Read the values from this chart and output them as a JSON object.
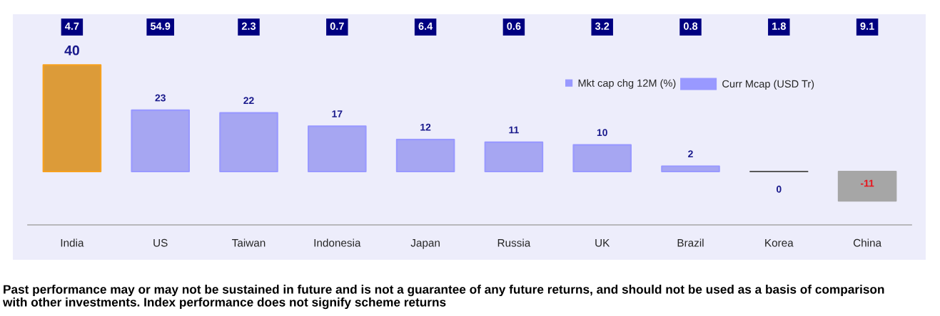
{
  "chart_data": [
    {
      "type": "other",
      "categories": [
        null,
        null,
        null,
        null,
        null,
        null,
        null,
        null,
        null,
        null
      ],
      "series": [
        {
          "name": "Curr Mcap (USD Tr)",
          "color": "#9999ff",
          "values": [
            4.7,
            54.9,
            2.3,
            0.7,
            6.4,
            0.6,
            3.2,
            0.8,
            1.8,
            9.1
          ]
        }
      ],
      "data_labels": true,
      "legend": "bottom right"
    },
    {
      "type": "bar",
      "categories": [
        "India",
        "US",
        "Taiwan",
        "Indonesia",
        "Japan",
        "Russia",
        "UK",
        "Brazil",
        "Korea",
        "China"
      ],
      "series": [
        {
          "name": "Mkt cap chg 12M (%)",
          "color": "#9999ff",
          "colors": [
            "#f7a11e",
            "#9999ff",
            "#9999ff",
            "#9999ff",
            "#9999ff",
            "#9999ff",
            "#9999ff",
            "#9999ff",
            "#595959",
            "#a6a6a6"
          ],
          "values": [
            40,
            23,
            22,
            17,
            12,
            11,
            10,
            2,
            0,
            -11
          ]
        }
      ],
      "data_labels": true,
      "ylim": [
        -20,
        59
      ],
      "tick_labels": "x",
      "legend": "top right",
      "grid": false,
      "annotations": [
        "Past performance may or may not be sustained in future and is not a guarantee of any future returns, and should not be used as a basis of comparison with other investments. Index performance does not signify scheme returns"
      ]
    }
  ]
}
